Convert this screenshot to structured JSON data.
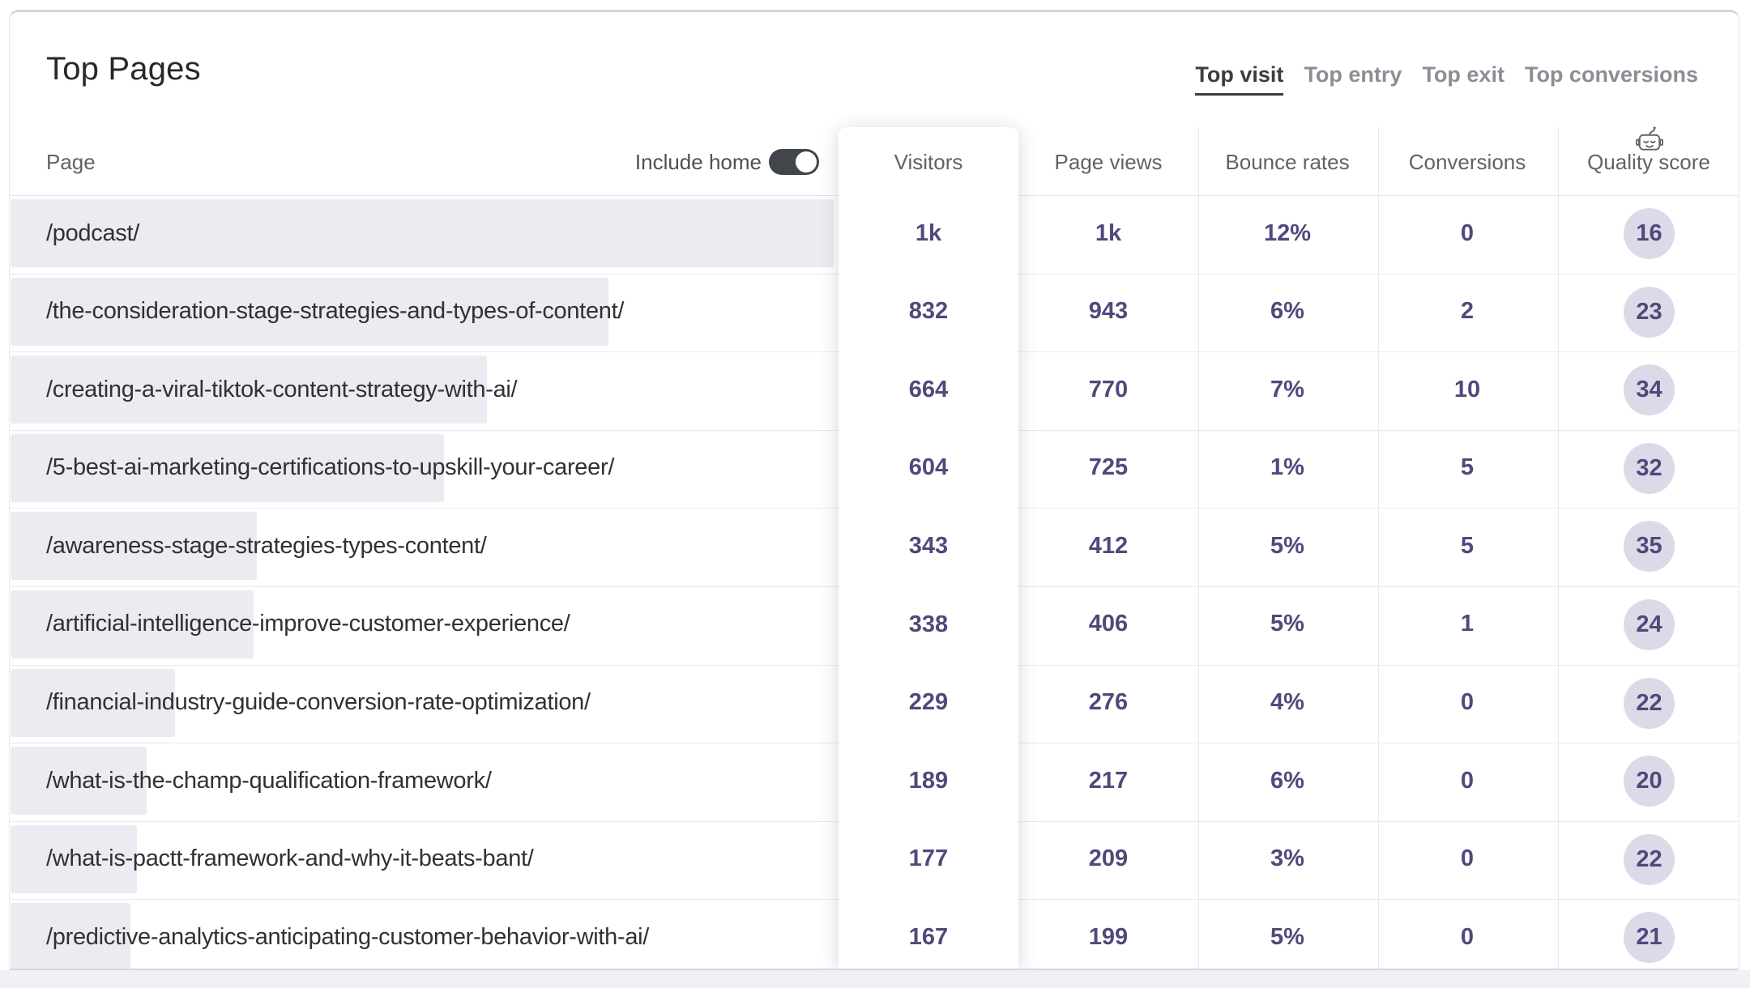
{
  "card": {
    "title": "Top Pages",
    "tabs": [
      {
        "label": "Top visit",
        "active": true
      },
      {
        "label": "Top entry",
        "active": false
      },
      {
        "label": "Top exit",
        "active": false
      },
      {
        "label": "Top conversions",
        "active": false
      }
    ],
    "controls": {
      "include_home_label": "Include home",
      "include_home_on": true
    },
    "columns": {
      "page": "Page",
      "visitors": "Visitors",
      "page_views": "Page views",
      "bounce_rates": "Bounce rates",
      "conversions": "Conversions",
      "quality_score": "Quality score",
      "quality_icon": "robot-icon"
    },
    "rows": [
      {
        "page": "/podcast/",
        "visitors": "1k",
        "page_views": "1k",
        "bounce_rate": "12%",
        "conversions": "0",
        "quality_score": "16",
        "bar_pct": 100
      },
      {
        "page": "/the-consideration-stage-strategies-and-types-of-content/",
        "visitors": "832",
        "page_views": "943",
        "bounce_rate": "6%",
        "conversions": "2",
        "quality_score": "23",
        "bar_pct": 72.6
      },
      {
        "page": "/creating-a-viral-tiktok-content-strategy-with-ai/",
        "visitors": "664",
        "page_views": "770",
        "bounce_rate": "7%",
        "conversions": "10",
        "quality_score": "34",
        "bar_pct": 57.9
      },
      {
        "page": "/5-best-ai-marketing-certifications-to-upskill-your-career/",
        "visitors": "604",
        "page_views": "725",
        "bounce_rate": "1%",
        "conversions": "5",
        "quality_score": "32",
        "bar_pct": 52.7
      },
      {
        "page": "/awareness-stage-strategies-types-content/",
        "visitors": "343",
        "page_views": "412",
        "bounce_rate": "5%",
        "conversions": "5",
        "quality_score": "35",
        "bar_pct": 29.9
      },
      {
        "page": "/artificial-intelligence-improve-customer-experience/",
        "visitors": "338",
        "page_views": "406",
        "bounce_rate": "5%",
        "conversions": "1",
        "quality_score": "24",
        "bar_pct": 29.5
      },
      {
        "page": "/financial-industry-guide-conversion-rate-optimization/",
        "visitors": "229",
        "page_views": "276",
        "bounce_rate": "4%",
        "conversions": "0",
        "quality_score": "22",
        "bar_pct": 20.0
      },
      {
        "page": "/what-is-the-champ-qualification-framework/",
        "visitors": "189",
        "page_views": "217",
        "bounce_rate": "6%",
        "conversions": "0",
        "quality_score": "20",
        "bar_pct": 16.5
      },
      {
        "page": "/what-is-pactt-framework-and-why-it-beats-bant/",
        "visitors": "177",
        "page_views": "209",
        "bounce_rate": "3%",
        "conversions": "0",
        "quality_score": "22",
        "bar_pct": 15.4
      },
      {
        "page": "/predictive-analytics-anticipating-customer-behavior-with-ai/",
        "visitors": "167",
        "page_views": "199",
        "bounce_rate": "5%",
        "conversions": "0",
        "quality_score": "21",
        "bar_pct": 14.6
      }
    ]
  },
  "colors": {
    "accent_indigo": "#4e4a7b",
    "bar_fill": "#ebebf1",
    "quality_circle": "#dcdae8",
    "toggle_on": "#42464c",
    "tab_active": "#3a3d42",
    "tab_inactive": "#8a8f95",
    "card_top_border": "#d4d7e0"
  }
}
